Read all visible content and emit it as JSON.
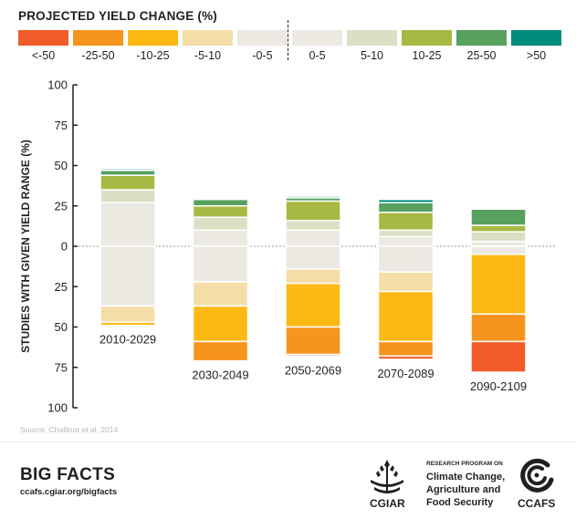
{
  "legend": {
    "title": "PROJECTED YIELD CHANGE (%)",
    "items": [
      {
        "label": "<-50",
        "color": "#f15a29"
      },
      {
        "label": "-25-50",
        "color": "#f7941d"
      },
      {
        "label": "-10-25",
        "color": "#fdb913"
      },
      {
        "label": "-5-10",
        "color": "#f4dea8"
      },
      {
        "label": "-0-5",
        "color": "#ebe9e2"
      },
      {
        "label": "0-5",
        "color": "#ebe9e2"
      },
      {
        "label": "5-10",
        "color": "#dcdfc4"
      },
      {
        "label": "10-25",
        "color": "#a7b843"
      },
      {
        "label": "25-50",
        "color": "#57a05e"
      },
      {
        "label": ">50",
        "color": "#008c7a"
      }
    ]
  },
  "chart_data": {
    "type": "bar",
    "stacked": "diverging",
    "ylabel": "STUDIES WITH GIVEN YIELD RANGE (%)",
    "ylim": [
      -100,
      100
    ],
    "yticks": [
      100,
      75,
      50,
      25,
      0,
      -25,
      -50,
      -75,
      -100
    ],
    "ytick_labels": [
      "100",
      "75",
      "50",
      "25",
      "0",
      "25",
      "50",
      "75",
      "100"
    ],
    "categories": [
      "2010-2029",
      "2030-2049",
      "2050-2069",
      "2070-2089",
      "2090-2109"
    ],
    "series": [
      {
        "key": "<-50",
        "color": "#f15a29",
        "values": [
          0,
          0,
          -1,
          -2,
          -19
        ]
      },
      {
        "key": "-25-50",
        "color": "#f7941d",
        "values": [
          0,
          -12,
          -17,
          -9,
          -17
        ]
      },
      {
        "key": "-10-25",
        "color": "#fdb913",
        "values": [
          -2,
          -22,
          -27,
          -31,
          -37
        ]
      },
      {
        "key": "-5-10",
        "color": "#f4dea8",
        "values": [
          -10,
          -15,
          -9,
          -12,
          0
        ]
      },
      {
        "key": "-0-5",
        "color": "#ebe9e2",
        "values": [
          -37,
          -22,
          -14,
          -16,
          -5
        ]
      },
      {
        "key": "0-5",
        "color": "#ebe9e2",
        "values": [
          27,
          10,
          10,
          6,
          3
        ]
      },
      {
        "key": "5-10",
        "color": "#dcdfc4",
        "values": [
          8,
          8,
          6,
          4,
          6
        ]
      },
      {
        "key": "10-25",
        "color": "#a7b843",
        "values": [
          9,
          7,
          12,
          11,
          4
        ]
      },
      {
        "key": "25-50",
        "color": "#57a05e",
        "values": [
          3,
          4,
          2,
          6,
          10
        ]
      },
      {
        "key": ">50",
        "color": "#008c7a",
        "values": [
          1,
          0,
          1,
          2,
          0
        ]
      }
    ]
  },
  "source": "Source: Challinor et al. 2014",
  "footer": {
    "big_facts": "BIG FACTS",
    "url": "ccafs.cgiar.org/bigfacts",
    "cgiar": "CGIAR",
    "research_program": "RESEARCH PROGRAM ON",
    "program_lines": [
      "Climate Change,",
      "Agriculture and",
      "Food Security"
    ],
    "ccafs": "CCAFS"
  }
}
